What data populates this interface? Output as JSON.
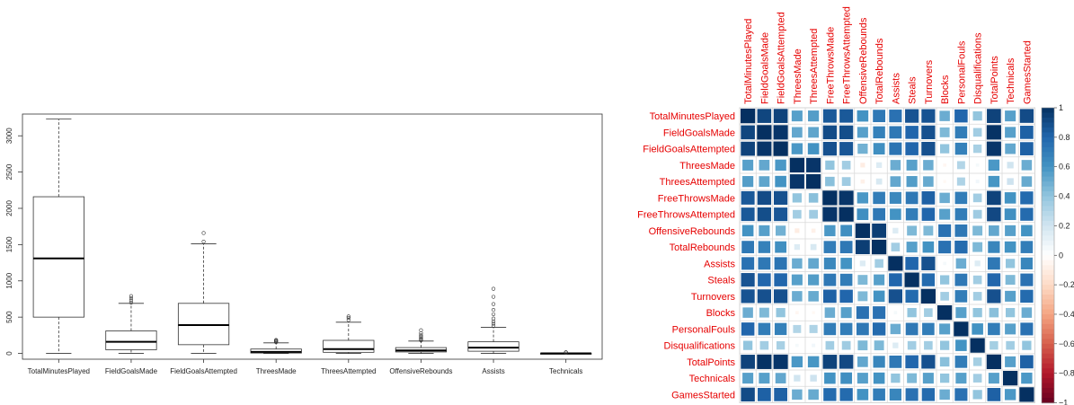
{
  "chart_data": [
    {
      "type": "boxplot",
      "categories": [
        "TotalMinutesPlayed",
        "FieldGoalsMade",
        "FieldGoalsAttempted",
        "ThreesMade",
        "ThreesAttempted",
        "OffensiveRebounds",
        "Assists",
        "Technicals"
      ],
      "ylim": [
        -80,
        3300
      ],
      "yticks": [
        0,
        500,
        1000,
        1500,
        2000,
        2500,
        3000
      ],
      "boxes": [
        {
          "min": 0,
          "q1": 500,
          "median": 1310,
          "q3": 2160,
          "max": 3230,
          "outliers": []
        },
        {
          "min": 0,
          "q1": 50,
          "median": 160,
          "q3": 310,
          "max": 690,
          "outliers": [
            700,
            730,
            760,
            790
          ]
        },
        {
          "min": 0,
          "q1": 120,
          "median": 390,
          "q3": 690,
          "max": 1510,
          "outliers": [
            1540,
            1660
          ]
        },
        {
          "min": 0,
          "q1": 5,
          "median": 20,
          "q3": 60,
          "max": 145,
          "outliers": [
            155,
            165,
            175,
            185
          ]
        },
        {
          "min": 0,
          "q1": 15,
          "median": 60,
          "q3": 180,
          "max": 430,
          "outliers": [
            460,
            490,
            510
          ]
        },
        {
          "min": 0,
          "q1": 20,
          "median": 40,
          "q3": 80,
          "max": 170,
          "outliers": [
            180,
            195,
            210,
            230,
            250,
            280,
            320
          ]
        },
        {
          "min": 0,
          "q1": 30,
          "median": 80,
          "q3": 160,
          "max": 360,
          "outliers": [
            380,
            410,
            440,
            480,
            540,
            600,
            680,
            780,
            890
          ]
        },
        {
          "min": 0,
          "q1": 0,
          "median": 1,
          "q3": 3,
          "max": 8,
          "outliers": [
            12,
            16
          ]
        }
      ]
    },
    {
      "type": "heatmap",
      "labels": [
        "TotalMinutesPlayed",
        "FieldGoalsMade",
        "FieldGoalsAttempted",
        "ThreesMade",
        "ThreesAttempted",
        "FreeThrowsMade",
        "FreeThrowsAttempted",
        "OffensiveRebounds",
        "TotalRebounds",
        "Assists",
        "Steals",
        "Turnovers",
        "Blocks",
        "PersonalFouls",
        "Disqualifications",
        "TotalPoints",
        "Technicals",
        "GamesStarted"
      ],
      "matrix": [
        [
          1.0,
          0.92,
          0.93,
          0.55,
          0.56,
          0.85,
          0.85,
          0.6,
          0.72,
          0.75,
          0.87,
          0.87,
          0.5,
          0.8,
          0.4,
          0.93,
          0.55,
          0.9
        ],
        [
          0.92,
          1.0,
          0.98,
          0.52,
          0.53,
          0.9,
          0.89,
          0.55,
          0.68,
          0.72,
          0.8,
          0.88,
          0.45,
          0.7,
          0.35,
          0.99,
          0.55,
          0.82
        ],
        [
          0.93,
          0.98,
          1.0,
          0.58,
          0.6,
          0.88,
          0.86,
          0.48,
          0.62,
          0.74,
          0.8,
          0.88,
          0.4,
          0.68,
          0.33,
          0.98,
          0.52,
          0.82
        ],
        [
          0.55,
          0.52,
          0.58,
          1.0,
          0.98,
          0.4,
          0.35,
          -0.1,
          0.15,
          0.5,
          0.55,
          0.5,
          -0.05,
          0.3,
          0.05,
          0.58,
          0.2,
          0.5
        ],
        [
          0.56,
          0.53,
          0.6,
          0.98,
          1.0,
          0.42,
          0.36,
          -0.08,
          0.17,
          0.52,
          0.56,
          0.51,
          -0.04,
          0.31,
          0.06,
          0.59,
          0.21,
          0.51
        ],
        [
          0.85,
          0.9,
          0.88,
          0.4,
          0.42,
          1.0,
          0.98,
          0.58,
          0.7,
          0.65,
          0.72,
          0.82,
          0.5,
          0.7,
          0.35,
          0.93,
          0.6,
          0.78
        ],
        [
          0.85,
          0.89,
          0.86,
          0.35,
          0.36,
          0.98,
          1.0,
          0.62,
          0.72,
          0.6,
          0.7,
          0.8,
          0.55,
          0.7,
          0.36,
          0.91,
          0.62,
          0.78
        ],
        [
          0.6,
          0.55,
          0.48,
          -0.1,
          -0.08,
          0.58,
          0.62,
          1.0,
          0.95,
          0.15,
          0.45,
          0.45,
          0.75,
          0.72,
          0.45,
          0.52,
          0.55,
          0.6
        ],
        [
          0.72,
          0.68,
          0.62,
          0.15,
          0.17,
          0.7,
          0.72,
          0.95,
          1.0,
          0.35,
          0.55,
          0.6,
          0.75,
          0.78,
          0.45,
          0.66,
          0.6,
          0.7
        ],
        [
          0.75,
          0.72,
          0.74,
          0.5,
          0.52,
          0.65,
          0.6,
          0.15,
          0.35,
          1.0,
          0.8,
          0.88,
          0.05,
          0.5,
          0.15,
          0.72,
          0.4,
          0.66
        ],
        [
          0.87,
          0.8,
          0.8,
          0.55,
          0.56,
          0.72,
          0.7,
          0.45,
          0.55,
          0.8,
          1.0,
          0.78,
          0.4,
          0.72,
          0.35,
          0.8,
          0.45,
          0.75
        ],
        [
          0.87,
          0.88,
          0.88,
          0.5,
          0.51,
          0.82,
          0.8,
          0.45,
          0.6,
          0.88,
          0.78,
          1.0,
          0.35,
          0.7,
          0.35,
          0.88,
          0.55,
          0.78
        ],
        [
          0.5,
          0.45,
          0.4,
          -0.05,
          -0.04,
          0.5,
          0.55,
          0.75,
          0.75,
          0.05,
          0.4,
          0.35,
          1.0,
          0.55,
          0.4,
          0.42,
          0.4,
          0.5
        ],
        [
          0.8,
          0.7,
          0.68,
          0.3,
          0.31,
          0.7,
          0.7,
          0.72,
          0.78,
          0.5,
          0.72,
          0.7,
          0.55,
          1.0,
          0.6,
          0.7,
          0.55,
          0.75
        ],
        [
          0.4,
          0.35,
          0.33,
          0.05,
          0.06,
          0.35,
          0.36,
          0.45,
          0.45,
          0.15,
          0.35,
          0.35,
          0.4,
          0.6,
          1.0,
          0.34,
          0.35,
          0.4
        ],
        [
          0.93,
          0.99,
          0.98,
          0.58,
          0.59,
          0.93,
          0.91,
          0.52,
          0.66,
          0.72,
          0.8,
          0.88,
          0.42,
          0.7,
          0.34,
          1.0,
          0.55,
          0.82
        ],
        [
          0.55,
          0.55,
          0.52,
          0.2,
          0.21,
          0.6,
          0.62,
          0.55,
          0.6,
          0.4,
          0.45,
          0.55,
          0.4,
          0.55,
          0.35,
          0.55,
          1.0,
          0.58
        ],
        [
          0.9,
          0.82,
          0.82,
          0.5,
          0.51,
          0.78,
          0.78,
          0.6,
          0.7,
          0.66,
          0.75,
          0.78,
          0.5,
          0.75,
          0.4,
          0.82,
          0.58,
          1.0
        ]
      ],
      "colorbar": {
        "ticks": [
          1,
          0.8,
          0.6,
          0.4,
          0.2,
          0,
          -0.2,
          -0.4,
          -0.6,
          -0.8,
          -1
        ],
        "range": [
          -1,
          1
        ]
      },
      "colors": {
        "label": "#e60000",
        "positive": "#053061",
        "negative": "#67001f"
      }
    }
  ]
}
